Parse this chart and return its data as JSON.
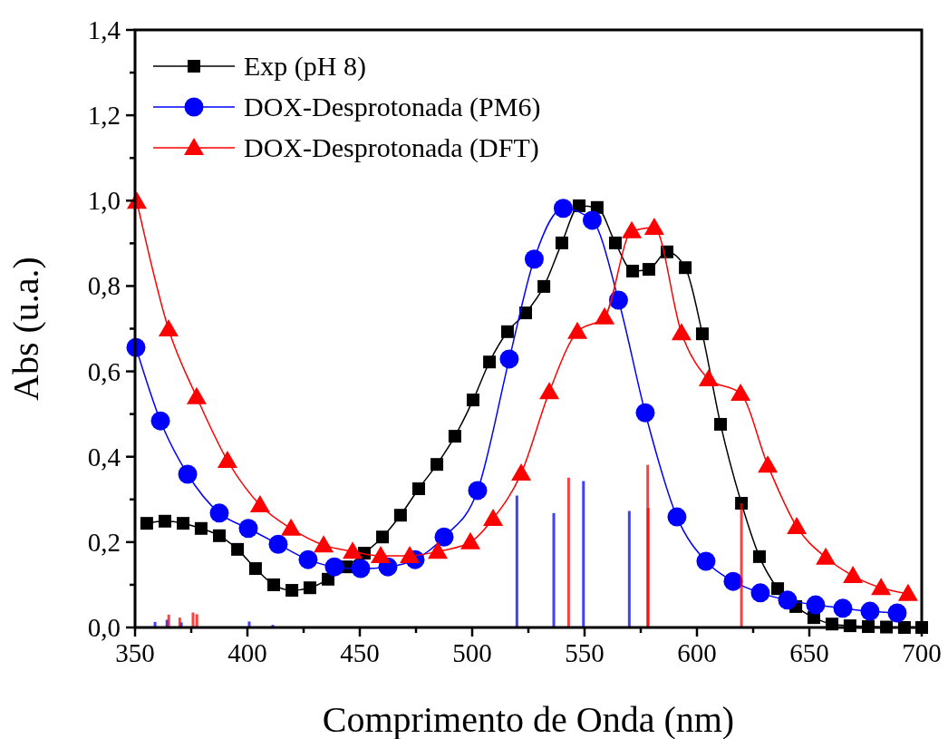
{
  "chart_data": {
    "type": "line",
    "xlabel": "Comprimento de Onda (nm)",
    "ylabel": "Abs (u.a.)",
    "xlim": [
      350,
      700
    ],
    "xticks": [
      350,
      {
        "value": 375,
        "label": null
      },
      400,
      {
        "value": 425,
        "label": null
      },
      450,
      {
        "value": 475,
        "label": null
      },
      500,
      {
        "value": 525,
        "label": null
      },
      550,
      {
        "value": 575,
        "label": null
      },
      600,
      {
        "value": 625,
        "label": null
      },
      650,
      {
        "value": 675,
        "label": null
      },
      700
    ],
    "ylim": [
      0,
      1.4
    ],
    "yticks": [
      {
        "value": 0,
        "label": "0,0"
      },
      {
        "value": 0.1,
        "label": null
      },
      {
        "value": 0.2,
        "label": "0,2"
      },
      {
        "value": 0.3,
        "label": null
      },
      {
        "value": 0.4,
        "label": "0,4"
      },
      {
        "value": 0.5,
        "label": null
      },
      {
        "value": 0.6,
        "label": "0,6"
      },
      {
        "value": 0.7,
        "label": null
      },
      {
        "value": 0.8,
        "label": "0,8"
      },
      {
        "value": 0.9,
        "label": null
      },
      {
        "value": 1.0,
        "label": "1,0"
      },
      {
        "value": 1.1,
        "label": null
      },
      {
        "value": 1.2,
        "label": "1,2"
      },
      {
        "value": 1.3,
        "label": null
      },
      {
        "value": 1.4,
        "label": "1,4"
      }
    ],
    "grid": false,
    "legend": "top left",
    "series": [
      {
        "name": "Exp (pH 8)",
        "marker": "square",
        "color": "#000000",
        "x": [
          355.2,
          363.3,
          371.4,
          379.4,
          387.5,
          395.6,
          403.6,
          411.7,
          419.8,
          427.8,
          435.9,
          444,
          452,
          460.1,
          468.1,
          476.2,
          484.3,
          492.3,
          500.4,
          507.7,
          515.7,
          523.8,
          531.9,
          539.9,
          547.6,
          555.6,
          563.7,
          571.4,
          578.6,
          586.7,
          594.8,
          602.4,
          610.5,
          619.8,
          627.8,
          635.9,
          644,
          652,
          660.1,
          668.1,
          676.2,
          684.3,
          692.3,
          700
        ],
        "values": [
          0.244,
          0.249,
          0.244,
          0.232,
          0.215,
          0.183,
          0.138,
          0.1,
          0.087,
          0.093,
          0.113,
          0.142,
          0.174,
          0.212,
          0.263,
          0.325,
          0.382,
          0.448,
          0.533,
          0.622,
          0.693,
          0.737,
          0.799,
          0.901,
          0.988,
          0.984,
          0.901,
          0.835,
          0.839,
          0.88,
          0.843,
          0.688,
          0.476,
          0.291,
          0.166,
          0.091,
          0.049,
          0.023,
          0.008,
          0.004,
          0.002,
          0.001,
          0,
          0
        ]
      },
      {
        "name": "DOX-Desprotonada (PM6)",
        "marker": "circle",
        "color": "#0000ff",
        "x": [
          350.4,
          361.3,
          373.4,
          387.5,
          400.4,
          413.7,
          427,
          438.7,
          450.4,
          462.5,
          474.6,
          487.5,
          502.4,
          516.5,
          527.6,
          540.5,
          553.4,
          565.1,
          577,
          591.1,
          604,
          616.1,
          628.2,
          640.3,
          652.8,
          664.9,
          677,
          689.1
        ],
        "values": [
          0.656,
          0.484,
          0.359,
          0.268,
          0.232,
          0.195,
          0.159,
          0.142,
          0.138,
          0.142,
          0.159,
          0.212,
          0.321,
          0.629,
          0.863,
          0.982,
          0.954,
          0.767,
          0.503,
          0.259,
          0.155,
          0.108,
          0.081,
          0.064,
          0.053,
          0.045,
          0.038,
          0.034
        ]
      },
      {
        "name": "DOX-Desprotonada (DFT)",
        "marker": "triangle",
        "color": "#ff0000",
        "x": [
          350.8,
          364.9,
          377.4,
          391.1,
          405.6,
          419.4,
          433.9,
          446.8,
          459.3,
          472.2,
          484.7,
          499.2,
          509.3,
          521.8,
          534.3,
          546.8,
          558.9,
          571,
          581,
          593.1,
          605.2,
          619.4,
          631.5,
          644.4,
          657.3,
          669.4,
          681.9,
          693.9
        ],
        "values": [
          0.998,
          0.699,
          0.54,
          0.391,
          0.287,
          0.232,
          0.193,
          0.178,
          0.168,
          0.168,
          0.178,
          0.2,
          0.255,
          0.361,
          0.552,
          0.693,
          0.727,
          0.929,
          0.937,
          0.69,
          0.582,
          0.548,
          0.38,
          0.236,
          0.164,
          0.121,
          0.093,
          0.079
        ]
      },
      {
        "type": "bar",
        "color": "#0000ff",
        "x": [
          358.9,
          364.2,
          370.6,
          400.8,
          411.3,
          519.9,
          536.3,
          549.5,
          569.9
        ],
        "values": [
          0.013,
          0.018,
          0.012,
          0.014,
          0.006,
          0.309,
          0.268,
          0.343,
          0.273
        ]
      },
      {
        "type": "bar",
        "color": "#ff0000",
        "x": [
          365,
          369.9,
          375.8,
          377.5,
          542.9,
          578.1,
          578.3,
          619.8
        ],
        "values": [
          0.03,
          0.023,
          0.035,
          0.031,
          0.351,
          0.381,
          0.28,
          0.291
        ]
      }
    ]
  }
}
